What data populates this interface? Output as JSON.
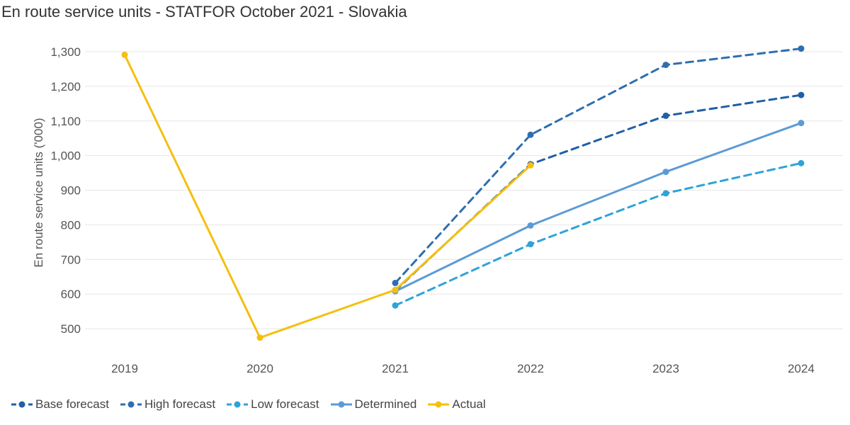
{
  "title": "En route service units - STATFOR October 2021 - Slovakia",
  "chart_data": {
    "type": "line",
    "title": "En route service units - STATFOR October 2021 - Slovakia",
    "ylabel": "En route service units ('000)",
    "xlabel": "",
    "x": [
      "2019",
      "2020",
      "2021",
      "2022",
      "2023",
      "2024"
    ],
    "ylim": [
      450,
      1330
    ],
    "yticks": [
      "500",
      "600",
      "700",
      "800",
      "900",
      "1,000",
      "1,100",
      "1,200",
      "1,300"
    ],
    "grid": true,
    "legend_position": "bottom-left",
    "series": [
      {
        "name": "Base forecast",
        "color": "#1f5fa8",
        "dash": true,
        "values": [
          null,
          null,
          610,
          975,
          1115,
          1175
        ]
      },
      {
        "name": "High forecast",
        "color": "#2e6eb0",
        "dash": true,
        "values": [
          null,
          null,
          632,
          1060,
          1262,
          1309
        ]
      },
      {
        "name": "Low forecast",
        "color": "#2ea3d8",
        "dash": true,
        "values": [
          null,
          null,
          567,
          744,
          891,
          978
        ]
      },
      {
        "name": "Determined",
        "color": "#5b9bd5",
        "dash": false,
        "values": [
          null,
          null,
          608,
          798,
          953,
          1094
        ]
      },
      {
        "name": "Actual",
        "color": "#f5bf0f",
        "dash": false,
        "values": [
          1291,
          474,
          612,
          972,
          null,
          null
        ]
      }
    ]
  }
}
